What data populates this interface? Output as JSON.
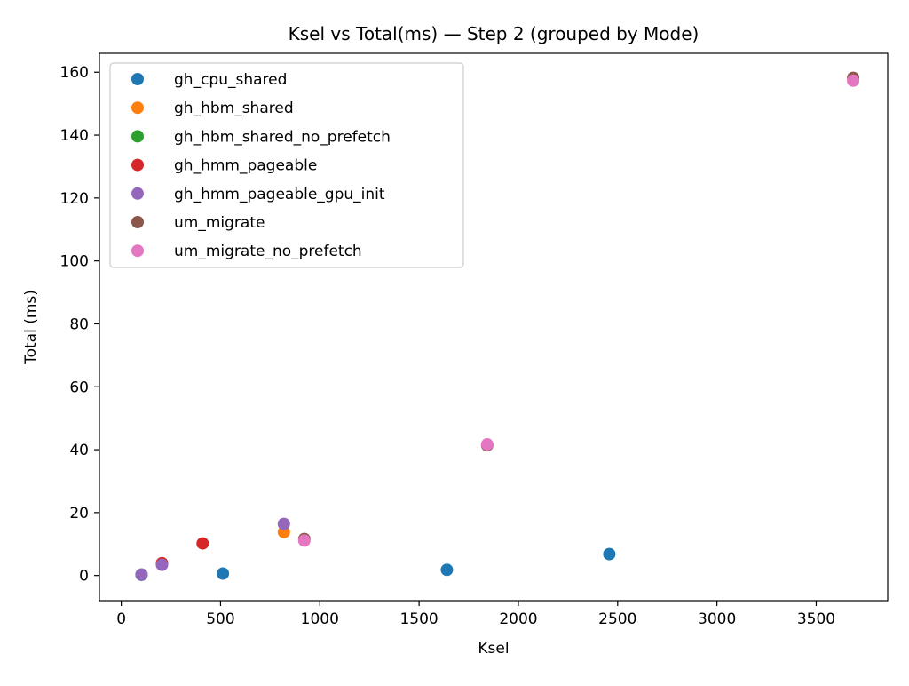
{
  "chart_data": {
    "type": "scatter",
    "title": "Ksel vs Total(ms) — Step 2 (grouped by Mode)",
    "xlabel": "Ksel",
    "ylabel": "Total (ms)",
    "xlim": [
      -110,
      3860
    ],
    "ylim": [
      -8,
      166
    ],
    "xticks": [
      0,
      500,
      1000,
      1500,
      2000,
      2500,
      3000,
      3500
    ],
    "yticks": [
      0,
      20,
      40,
      60,
      80,
      100,
      120,
      140,
      160
    ],
    "grid": false,
    "legend_position": "top-left",
    "series": [
      {
        "name": "gh_cpu_shared",
        "color": "#1f77b4",
        "points": [
          [
            102,
            0.2
          ],
          [
            512,
            0.6
          ],
          [
            1640,
            1.8
          ],
          [
            2458,
            6.8
          ]
        ]
      },
      {
        "name": "gh_hbm_shared",
        "color": "#ff7f0e",
        "points": [
          [
            819,
            13.8
          ]
        ]
      },
      {
        "name": "gh_hbm_shared_no_prefetch",
        "color": "#2ca02c",
        "points": [
          [
            102,
            0.3
          ]
        ]
      },
      {
        "name": "gh_hmm_pageable",
        "color": "#d62728",
        "points": [
          [
            205,
            3.9
          ],
          [
            410,
            10.2
          ]
        ]
      },
      {
        "name": "gh_hmm_pageable_gpu_init",
        "color": "#9467bd",
        "points": [
          [
            102,
            0.3
          ],
          [
            205,
            3.4
          ],
          [
            819,
            16.4
          ]
        ]
      },
      {
        "name": "um_migrate",
        "color": "#8c564b",
        "points": [
          [
            922,
            11.6
          ],
          [
            1843,
            41.4
          ],
          [
            3686,
            158.2
          ]
        ]
      },
      {
        "name": "um_migrate_no_prefetch",
        "color": "#e377c2",
        "points": [
          [
            922,
            11.1
          ],
          [
            1843,
            41.7
          ],
          [
            3686,
            157.3
          ]
        ]
      }
    ]
  }
}
